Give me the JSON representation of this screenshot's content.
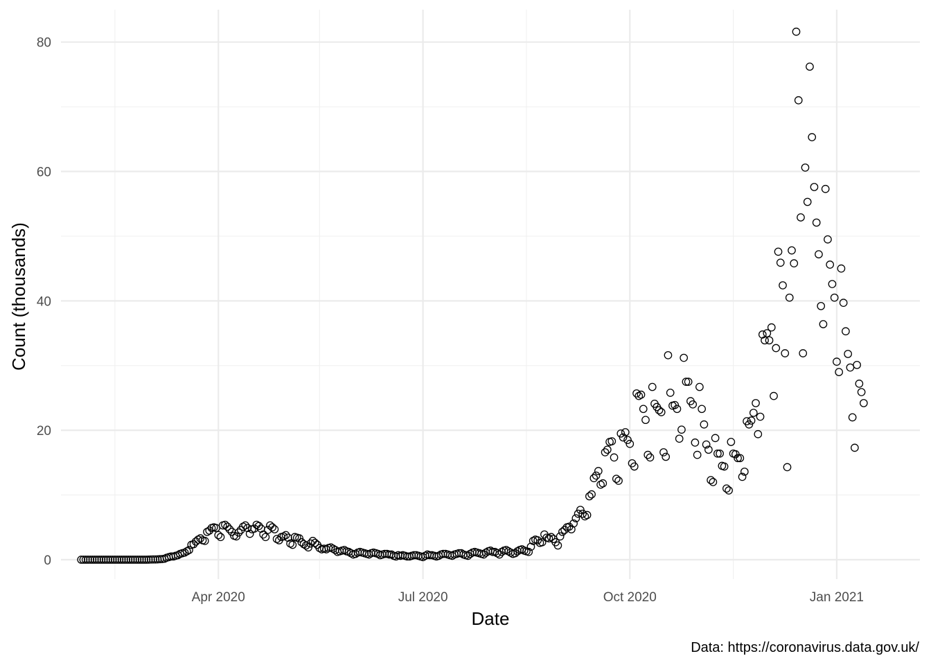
{
  "chart_data": {
    "type": "scatter",
    "title": "",
    "xlabel": "Date",
    "ylabel": "Count (thousands)",
    "caption": "Data: https://coronavirus.data.gov.uk/",
    "x_is_date": true,
    "xlim": [
      "2020-01-22",
      "2021-02-07"
    ],
    "ylim": [
      -3,
      85
    ],
    "x_ticks": [
      {
        "date": "2020-04-01",
        "label": "Apr 2020"
      },
      {
        "date": "2020-07-01",
        "label": "Jul 2020"
      },
      {
        "date": "2020-10-01",
        "label": "Oct 2020"
      },
      {
        "date": "2021-01-01",
        "label": "Jan 2021"
      }
    ],
    "x_minor_ticks": [
      "2020-02-15",
      "2020-05-16",
      "2020-08-16",
      "2020-11-16"
    ],
    "y_ticks": [
      0,
      20,
      40,
      60,
      80
    ],
    "y_minor_ticks": [
      10,
      30,
      50,
      70
    ],
    "grid": true,
    "legend": "none",
    "start_date": "2020-01-31",
    "series": [
      {
        "marker": "open-circle",
        "color": "#000000",
        "values": [
          0.002,
          0.002,
          0.002,
          0.002,
          0.002,
          0.002,
          0.002,
          0.002,
          0.002,
          0.002,
          0.002,
          0.002,
          0.002,
          0.002,
          0.002,
          0.002,
          0.002,
          0.002,
          0.002,
          0.002,
          0.002,
          0.002,
          0.002,
          0.002,
          0.002,
          0.002,
          0.002,
          0.002,
          0.003,
          0.005,
          0.01,
          0.03,
          0.04,
          0.04,
          0.05,
          0.08,
          0.1,
          0.15,
          0.3,
          0.4,
          0.5,
          0.5,
          0.6,
          0.7,
          0.9,
          1.0,
          1.1,
          1.3,
          1.5,
          2.3,
          2.4,
          2.8,
          3.1,
          3.3,
          3.0,
          2.9,
          4.3,
          4.5,
          4.9,
          5.0,
          4.9,
          3.8,
          3.5,
          5.3,
          5.4,
          5.1,
          4.7,
          4.3,
          3.7,
          3.6,
          4.2,
          4.6,
          5.1,
          5.3,
          4.9,
          4.0,
          4.7,
          4.8,
          5.4,
          5.2,
          4.8,
          3.9,
          3.5,
          4.6,
          5.3,
          5.0,
          4.7,
          3.2,
          3.0,
          3.5,
          3.6,
          3.8,
          3.4,
          2.5,
          2.3,
          3.5,
          3.4,
          3.3,
          2.7,
          2.4,
          2.2,
          1.9,
          2.5,
          2.9,
          2.6,
          2.3,
          1.8,
          1.6,
          1.7,
          1.6,
          1.8,
          1.9,
          1.7,
          1.5,
          1.2,
          1.3,
          1.4,
          1.5,
          1.3,
          1.2,
          1.0,
          0.8,
          0.9,
          1.1,
          1.2,
          1.1,
          1.0,
          0.9,
          0.8,
          1.0,
          1.1,
          1.0,
          0.9,
          0.7,
          0.8,
          0.9,
          0.9,
          0.8,
          0.8,
          0.6,
          0.5,
          0.7,
          0.6,
          0.7,
          0.6,
          0.5,
          0.5,
          0.6,
          0.7,
          0.7,
          0.6,
          0.5,
          0.4,
          0.6,
          0.8,
          0.7,
          0.7,
          0.6,
          0.5,
          0.6,
          0.8,
          0.9,
          0.9,
          0.8,
          0.7,
          0.6,
          0.8,
          0.9,
          1.0,
          1.0,
          0.8,
          0.7,
          0.6,
          0.9,
          1.1,
          1.2,
          1.1,
          1.0,
          0.9,
          0.8,
          1.1,
          1.3,
          1.4,
          1.2,
          1.2,
          1.0,
          0.8,
          1.2,
          1.4,
          1.5,
          1.3,
          1.1,
          0.9,
          1.0,
          1.3,
          1.5,
          1.6,
          1.4,
          1.3,
          1.2,
          2.0,
          2.9,
          3.1,
          3.0,
          2.6,
          2.7,
          3.9,
          3.4,
          3.3,
          3.5,
          3.2,
          2.7,
          2.2,
          3.6,
          4.3,
          4.6,
          5.0,
          5.1,
          4.7,
          5.6,
          6.4,
          7.1,
          7.7,
          7.1,
          6.7,
          6.9,
          9.8,
          10.1,
          12.6,
          13.0,
          13.7,
          11.6,
          11.8,
          16.6,
          17.0,
          18.2,
          18.3,
          15.8,
          12.5,
          12.2,
          19.5,
          18.9,
          19.7,
          18.5,
          17.9,
          14.9,
          14.4,
          25.7,
          25.3,
          25.5,
          23.3,
          21.6,
          16.2,
          15.8,
          26.7,
          24.1,
          23.6,
          23.1,
          22.8,
          16.6,
          15.9,
          31.6,
          25.8,
          23.8,
          23.9,
          23.3,
          18.7,
          20.1,
          31.2,
          27.5,
          27.5,
          24.5,
          24.0,
          18.1,
          16.2,
          26.7,
          23.3,
          20.9,
          17.8,
          17.0,
          12.3,
          12.0,
          18.8,
          16.4,
          16.4,
          14.5,
          14.4,
          11.0,
          10.7,
          18.2,
          16.4,
          16.3,
          15.7,
          15.7,
          12.8,
          13.6,
          21.4,
          20.9,
          21.5,
          22.7,
          24.2,
          19.4,
          22.1,
          34.8,
          33.9,
          35.0,
          33.9,
          35.9,
          25.3,
          32.7,
          47.6,
          45.9,
          42.4,
          31.9,
          14.3,
          40.5,
          47.8,
          45.8,
          81.6,
          71.0,
          52.9,
          31.9,
          60.6,
          55.3,
          76.2,
          65.3,
          57.6,
          52.1,
          47.2,
          39.2,
          36.4,
          57.3,
          49.5,
          45.6,
          42.6,
          40.5,
          30.6,
          29.0,
          45.0,
          39.7,
          35.3,
          31.8,
          29.7,
          22.0,
          17.3,
          30.1,
          27.2,
          25.9,
          24.2
        ]
      }
    ]
  }
}
